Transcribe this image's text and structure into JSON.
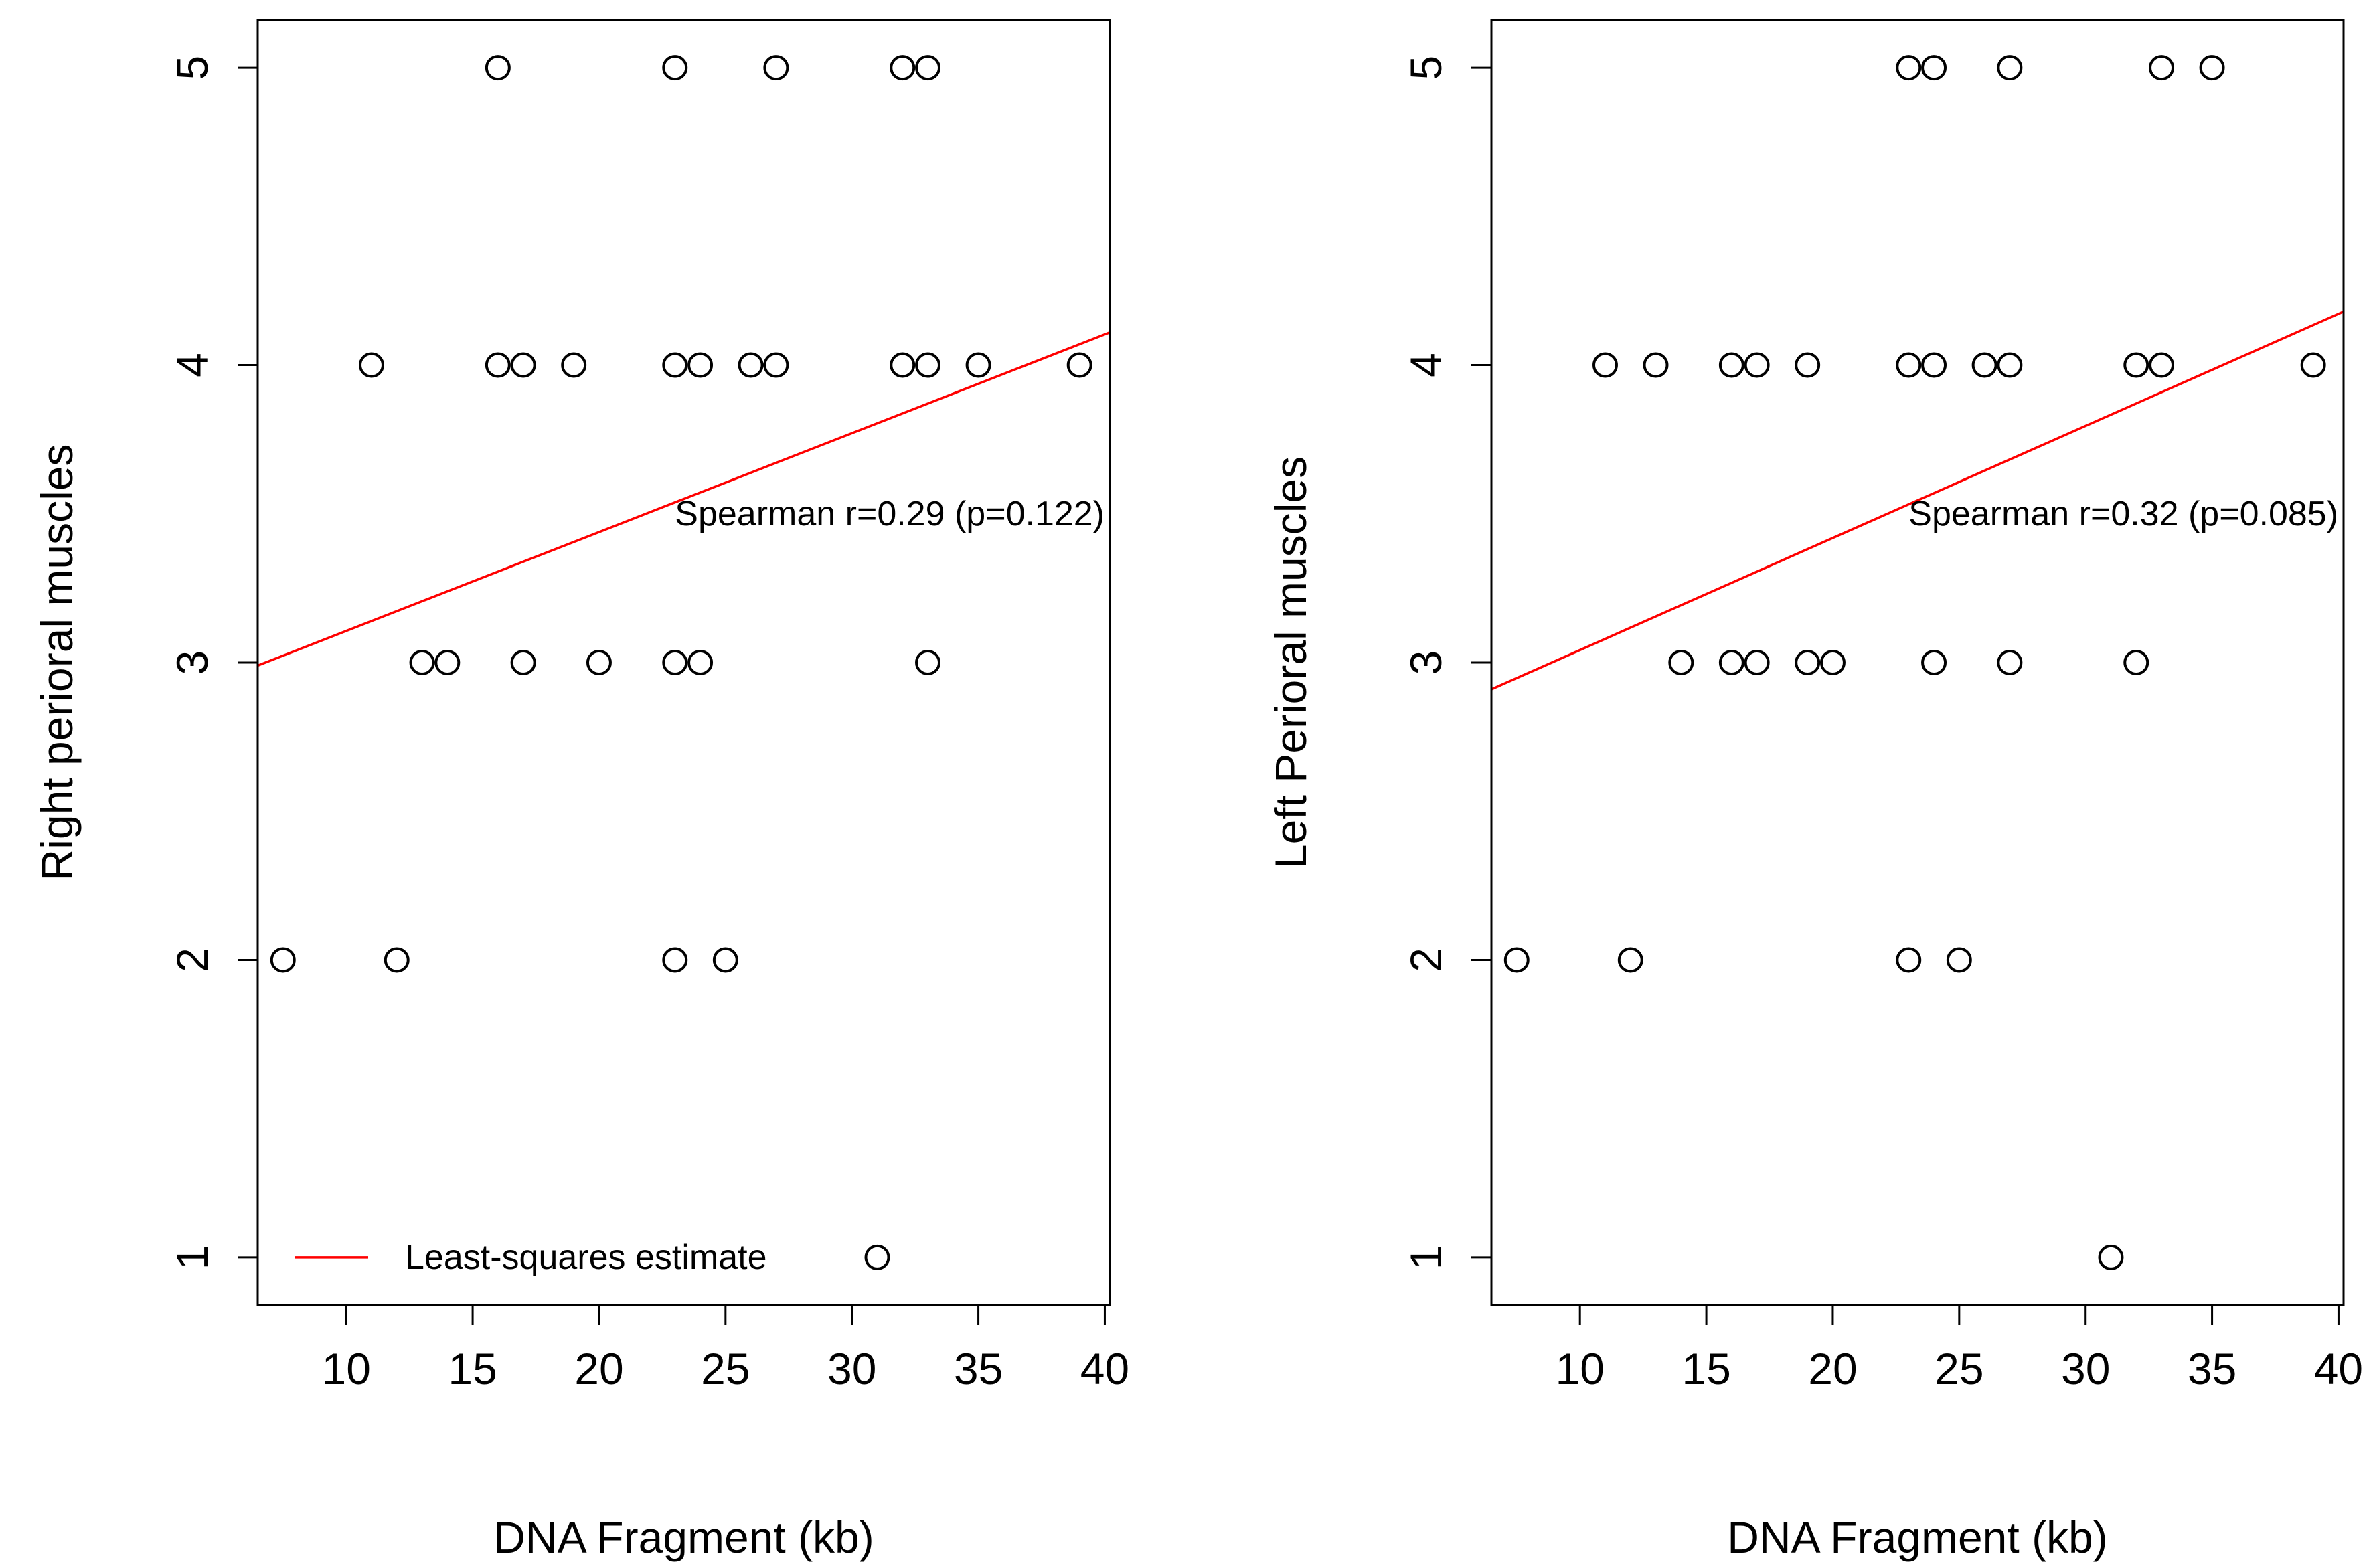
{
  "chart_data": [
    {
      "type": "scatter",
      "xlabel": "DNA Fragment (kb)",
      "ylabel": "Right perioral muscles",
      "xlim": [
        6.5,
        40.2
      ],
      "ylim": [
        0.84,
        5.16
      ],
      "xticks": [
        10,
        15,
        20,
        25,
        30,
        35,
        40
      ],
      "yticks": [
        1,
        2,
        3,
        4,
        5
      ],
      "points": [
        {
          "x": 7.5,
          "y": 2
        },
        {
          "x": 12,
          "y": 2
        },
        {
          "x": 23,
          "y": 2
        },
        {
          "x": 25,
          "y": 2
        },
        {
          "x": 13,
          "y": 3
        },
        {
          "x": 14,
          "y": 3
        },
        {
          "x": 17,
          "y": 3
        },
        {
          "x": 20,
          "y": 3
        },
        {
          "x": 23,
          "y": 3
        },
        {
          "x": 24,
          "y": 3
        },
        {
          "x": 33,
          "y": 3
        },
        {
          "x": 11,
          "y": 4
        },
        {
          "x": 16,
          "y": 4
        },
        {
          "x": 17,
          "y": 4
        },
        {
          "x": 19,
          "y": 4
        },
        {
          "x": 23,
          "y": 4
        },
        {
          "x": 24,
          "y": 4
        },
        {
          "x": 26,
          "y": 4
        },
        {
          "x": 27,
          "y": 4
        },
        {
          "x": 32,
          "y": 4
        },
        {
          "x": 33,
          "y": 4
        },
        {
          "x": 35,
          "y": 4
        },
        {
          "x": 39,
          "y": 4
        },
        {
          "x": 16,
          "y": 5
        },
        {
          "x": 23,
          "y": 5
        },
        {
          "x": 27,
          "y": 5
        },
        {
          "x": 32,
          "y": 5
        },
        {
          "x": 33,
          "y": 5
        },
        {
          "x": 31,
          "y": 1
        }
      ],
      "fit_line": {
        "x": [
          6.5,
          40.2
        ],
        "y": [
          2.99,
          4.11
        ],
        "color": "#ff0000"
      },
      "annotation": {
        "text": "Spearman r=0.29 (p=0.122)",
        "x": 23.0,
        "y": 3.5
      },
      "legend": {
        "label": "Least-squares estimate",
        "color": "#ff0000",
        "position": "bottom-left"
      }
    },
    {
      "type": "scatter",
      "xlabel": "DNA Fragment (kb)",
      "ylabel": "Left Perioral muscles",
      "xlim": [
        6.5,
        40.2
      ],
      "ylim": [
        0.84,
        5.16
      ],
      "xticks": [
        10,
        15,
        20,
        25,
        30,
        35,
        40
      ],
      "yticks": [
        1,
        2,
        3,
        4,
        5
      ],
      "points": [
        {
          "x": 7.5,
          "y": 2
        },
        {
          "x": 12,
          "y": 2
        },
        {
          "x": 23,
          "y": 2
        },
        {
          "x": 25,
          "y": 2
        },
        {
          "x": 14,
          "y": 3
        },
        {
          "x": 16,
          "y": 3
        },
        {
          "x": 17,
          "y": 3
        },
        {
          "x": 19,
          "y": 3
        },
        {
          "x": 20,
          "y": 3
        },
        {
          "x": 24,
          "y": 3
        },
        {
          "x": 27,
          "y": 3
        },
        {
          "x": 32,
          "y": 3
        },
        {
          "x": 11,
          "y": 4
        },
        {
          "x": 13,
          "y": 4
        },
        {
          "x": 16,
          "y": 4
        },
        {
          "x": 17,
          "y": 4
        },
        {
          "x": 19,
          "y": 4
        },
        {
          "x": 23,
          "y": 4
        },
        {
          "x": 24,
          "y": 4
        },
        {
          "x": 26,
          "y": 4
        },
        {
          "x": 27,
          "y": 4
        },
        {
          "x": 32,
          "y": 4
        },
        {
          "x": 33,
          "y": 4
        },
        {
          "x": 39,
          "y": 4
        },
        {
          "x": 23,
          "y": 5
        },
        {
          "x": 24,
          "y": 5
        },
        {
          "x": 27,
          "y": 5
        },
        {
          "x": 33,
          "y": 5
        },
        {
          "x": 35,
          "y": 5
        },
        {
          "x": 31,
          "y": 1
        }
      ],
      "fit_line": {
        "x": [
          6.5,
          40.2
        ],
        "y": [
          2.91,
          4.18
        ],
        "color": "#ff0000"
      },
      "annotation": {
        "text": "Spearman r=0.32 (p=0.085)",
        "x": 23.0,
        "y": 3.5
      }
    }
  ]
}
